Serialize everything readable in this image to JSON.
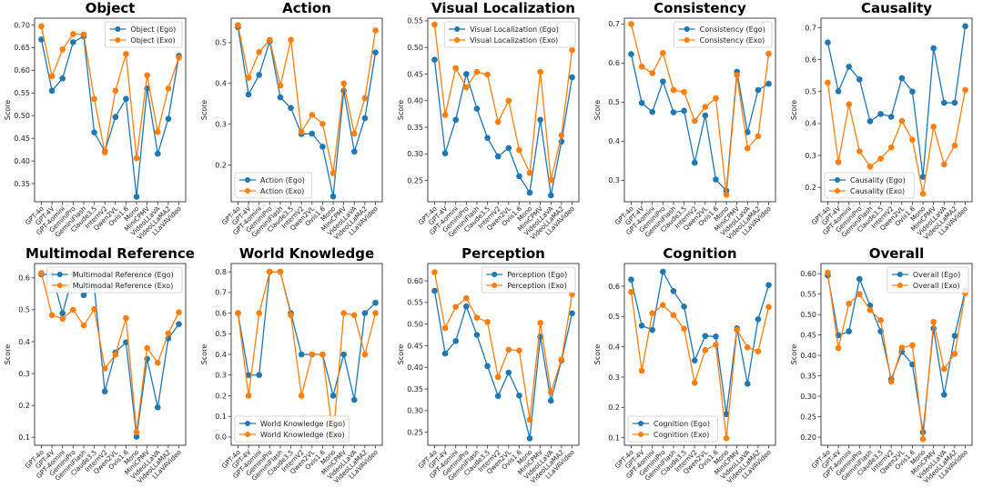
{
  "chart_data": [
    {
      "type": "line",
      "title": "Object",
      "xlabel": "",
      "ylabel": "Score",
      "ylim": [
        0.31,
        0.715
      ],
      "yticks": [
        0.35,
        0.4,
        0.45,
        0.5,
        0.55,
        0.6,
        0.65,
        0.7
      ],
      "ytick_labels": [
        "0.35",
        "0.40",
        "0.45",
        "0.50",
        "0.55",
        "0.60",
        "0.65",
        "0.70"
      ],
      "legend": "top-right",
      "grid": false,
      "categories": [
        "GPT-4o",
        "GPT-4V",
        "GPT-4omini",
        "GeminiPro",
        "GeminiFlash",
        "Claude3.5",
        "InternV2",
        "Qwen2VL",
        "Ovis1.6",
        "Mono",
        "MiniCPMV",
        "VideoLLaVA",
        "VideoLLaMA2",
        "LLaVAVideo"
      ],
      "series": [
        {
          "name": "Object (Ego)",
          "color": "#1f77b4",
          "values": [
            0.668,
            0.555,
            0.582,
            0.662,
            0.675,
            0.463,
            0.421,
            0.497,
            0.537,
            0.321,
            0.56,
            0.416,
            0.493,
            0.632
          ]
        },
        {
          "name": "Object (Exo)",
          "color": "#ff7f0e",
          "values": [
            0.697,
            0.587,
            0.646,
            0.68,
            0.679,
            0.537,
            0.419,
            0.555,
            0.636,
            0.406,
            0.589,
            0.464,
            0.56,
            0.628
          ]
        }
      ]
    },
    {
      "type": "line",
      "title": "Action",
      "xlabel": "",
      "ylabel": "Score",
      "ylim": [
        0.11,
        0.56
      ],
      "yticks": [
        0.2,
        0.3,
        0.4,
        0.5
      ],
      "ytick_labels": [
        "0.2",
        "0.3",
        "0.4",
        "0.5"
      ],
      "legend": "bottom-left",
      "grid": false,
      "categories": [
        "GPT-4o",
        "GPT-4V",
        "GPT-4omini",
        "GeminiPro",
        "GeminiFlash",
        "Claude3.5",
        "InternV2",
        "Qwen2VL",
        "Ovis1.6",
        "Mono",
        "MiniCPMV",
        "VideoLLaVA",
        "VideoLLaMA2",
        "LLaVAVideo"
      ],
      "series": [
        {
          "name": "Action (Ego)",
          "color": "#1f77b4",
          "values": [
            0.538,
            0.373,
            0.421,
            0.503,
            0.366,
            0.34,
            0.276,
            0.277,
            0.245,
            0.123,
            0.382,
            0.233,
            0.315,
            0.476
          ]
        },
        {
          "name": "Action (Exo)",
          "color": "#ff7f0e",
          "values": [
            0.543,
            0.414,
            0.477,
            0.507,
            0.395,
            0.507,
            0.281,
            0.323,
            0.301,
            0.18,
            0.4,
            0.277,
            0.364,
            0.53
          ]
        }
      ]
    },
    {
      "type": "line",
      "title": "Visual Localization",
      "xlabel": "",
      "ylabel": "Score",
      "ylim": [
        0.21,
        0.555
      ],
      "yticks": [
        0.25,
        0.3,
        0.35,
        0.4,
        0.45,
        0.5,
        0.55
      ],
      "ytick_labels": [
        "0.25",
        "0.30",
        "0.35",
        "0.40",
        "0.45",
        "0.50",
        "0.55"
      ],
      "legend": "top-right",
      "grid": false,
      "categories": [
        "GPT-4o",
        "GPT-4V",
        "GPT-4omini",
        "GeminiPro",
        "GeminiFlash",
        "Claude3.5",
        "InternV2",
        "Qwen2VL",
        "Ovis1.6",
        "Mono",
        "MiniCPMV",
        "VideoLLaVA",
        "VideoLLaMA2",
        "LLaVAVideo"
      ],
      "series": [
        {
          "name": "Visual Localization (Ego)",
          "color": "#1f77b4",
          "values": [
            0.477,
            0.301,
            0.364,
            0.45,
            0.385,
            0.33,
            0.295,
            0.311,
            0.258,
            0.227,
            0.364,
            0.222,
            0.323,
            0.444
          ]
        },
        {
          "name": "Visual Localization (Exo)",
          "color": "#ff7f0e",
          "values": [
            0.543,
            0.373,
            0.461,
            0.425,
            0.454,
            0.449,
            0.36,
            0.4,
            0.307,
            0.264,
            0.454,
            0.251,
            0.335,
            0.495
          ]
        }
      ]
    },
    {
      "type": "line",
      "title": "Consistency",
      "xlabel": "",
      "ylabel": "Score",
      "ylim": [
        0.245,
        0.715
      ],
      "yticks": [
        0.3,
        0.4,
        0.5,
        0.6,
        0.7
      ],
      "ytick_labels": [
        "0.3",
        "0.4",
        "0.5",
        "0.6",
        "0.7"
      ],
      "legend": "top-right",
      "grid": false,
      "categories": [
        "GPT-4o",
        "GPT-4V",
        "GPT-4omini",
        "GeminiPro",
        "GeminiFlash",
        "Claude3.5",
        "InternV2",
        "Qwen2VL",
        "Ovis1.6",
        "Mono",
        "MiniCPMV",
        "VideoLLaVA",
        "VideoLLaMA2",
        "LLaVAVideo"
      ],
      "series": [
        {
          "name": "Consistency (Ego)",
          "color": "#1f77b4",
          "values": [
            0.623,
            0.498,
            0.475,
            0.553,
            0.474,
            0.478,
            0.345,
            0.466,
            0.302,
            0.273,
            0.578,
            0.423,
            0.531,
            0.547
          ]
        },
        {
          "name": "Consistency (Exo)",
          "color": "#ff7f0e",
          "values": [
            0.7,
            0.591,
            0.574,
            0.626,
            0.531,
            0.526,
            0.452,
            0.488,
            0.51,
            0.263,
            0.569,
            0.382,
            0.413,
            0.624
          ]
        }
      ]
    },
    {
      "type": "line",
      "title": "Causality",
      "xlabel": "",
      "ylabel": "Score",
      "ylim": [
        0.155,
        0.73
      ],
      "yticks": [
        0.2,
        0.3,
        0.4,
        0.5,
        0.6,
        0.7
      ],
      "ytick_labels": [
        "0.2",
        "0.3",
        "0.4",
        "0.5",
        "0.6",
        "0.7"
      ],
      "legend": "bottom-left",
      "grid": false,
      "categories": [
        "GPT-4o",
        "GPT-4V",
        "GPT-4omini",
        "GeminiPro",
        "GeminiFlash",
        "Claude3.5",
        "InternV2",
        "Qwen2VL",
        "Ovis1.6",
        "Mono",
        "MiniCPMV",
        "VideoLLaVA",
        "VideoLLaMA2",
        "LLaVAVideo"
      ],
      "series": [
        {
          "name": "Causality (Ego)",
          "color": "#1f77b4",
          "values": [
            0.654,
            0.501,
            0.578,
            0.538,
            0.407,
            0.43,
            0.421,
            0.542,
            0.5,
            0.233,
            0.636,
            0.465,
            0.465,
            0.705
          ]
        },
        {
          "name": "Causality (Exo)",
          "color": "#ff7f0e",
          "values": [
            0.528,
            0.279,
            0.46,
            0.313,
            0.265,
            0.29,
            0.325,
            0.408,
            0.349,
            0.18,
            0.39,
            0.272,
            0.331,
            0.505
          ]
        }
      ]
    },
    {
      "type": "line",
      "title": "Multimodal Reference",
      "xlabel": "",
      "ylabel": "Score",
      "ylim": [
        0.075,
        0.645
      ],
      "yticks": [
        0.1,
        0.2,
        0.3,
        0.4,
        0.5,
        0.6
      ],
      "ytick_labels": [
        "0.1",
        "0.2",
        "0.3",
        "0.4",
        "0.5",
        "0.6"
      ],
      "legend": "top-right",
      "grid": false,
      "categories": [
        "GPT-4o",
        "GPT-4V",
        "GPT-4omini",
        "GeminiPro",
        "GeminiFlash",
        "Claude3.5",
        "InternV2",
        "Qwen2VL",
        "Ovis1.6",
        "Mono",
        "MiniCPMV",
        "VideoLLaVA",
        "VideoLLaMA2",
        "LLaVAVideo"
      ],
      "series": [
        {
          "name": "Multimodal Reference (Ego)",
          "color": "#1f77b4",
          "values": [
            0.611,
            0.611,
            0.489,
            0.611,
            0.546,
            0.571,
            0.244,
            0.366,
            0.398,
            0.102,
            0.346,
            0.194,
            0.41,
            0.455
          ]
        },
        {
          "name": "Multimodal Reference (Exo)",
          "color": "#ff7f0e",
          "values": [
            0.615,
            0.483,
            0.472,
            0.5,
            0.451,
            0.502,
            0.316,
            0.359,
            0.474,
            0.116,
            0.38,
            0.334,
            0.426,
            0.492
          ]
        }
      ]
    },
    {
      "type": "line",
      "title": "World Knowledge",
      "xlabel": "",
      "ylabel": "Score",
      "ylim": [
        -0.04,
        0.84
      ],
      "yticks": [
        0.0,
        0.1,
        0.2,
        0.3,
        0.4,
        0.5,
        0.6,
        0.7,
        0.8
      ],
      "ytick_labels": [
        "0.0",
        "0.1",
        "0.2",
        "0.3",
        "0.4",
        "0.5",
        "0.6",
        "0.7",
        "0.8"
      ],
      "legend": "bottom-left",
      "grid": false,
      "categories": [
        "GPT-4o",
        "GPT-4V",
        "GPT-4omini",
        "GeminiPro",
        "GeminiFlash",
        "Claude3.5",
        "InternV2",
        "Qwen2VL",
        "Ovis1.6",
        "Mono",
        "MiniCPMV",
        "VideoLLaVA",
        "VideoLLaMA2",
        "LLaVAVideo"
      ],
      "series": [
        {
          "name": "World Knowledge (Ego)",
          "color": "#1f77b4",
          "values": [
            0.6,
            0.3,
            0.3,
            0.8,
            0.8,
            0.6,
            0.4,
            0.4,
            0.4,
            0.2,
            0.4,
            0.18,
            0.6,
            0.65
          ]
        },
        {
          "name": "World Knowledge (Exo)",
          "color": "#ff7f0e",
          "values": [
            0.6,
            0.2,
            0.6,
            0.8,
            0.8,
            0.59,
            0.2,
            0.4,
            0.4,
            0.0,
            0.6,
            0.59,
            0.4,
            0.6
          ]
        }
      ]
    },
    {
      "type": "line",
      "title": "Perception",
      "xlabel": "",
      "ylabel": "Score",
      "ylim": [
        0.22,
        0.64
      ],
      "yticks": [
        0.25,
        0.3,
        0.35,
        0.4,
        0.45,
        0.5,
        0.55,
        0.6
      ],
      "ytick_labels": [
        "0.25",
        "0.30",
        "0.35",
        "0.40",
        "0.45",
        "0.50",
        "0.55",
        "0.60"
      ],
      "legend": "top-right",
      "grid": false,
      "categories": [
        "GPT-4o",
        "GPT-4V",
        "GPT-4omini",
        "GeminiPro",
        "GeminiFlash",
        "Claude3.5",
        "InternV2",
        "Qwen2VL",
        "Ovis1.6",
        "Mono",
        "MiniCPMV",
        "VideoLLaVA",
        "VideoLLaMA2",
        "LLaVAVideo"
      ],
      "series": [
        {
          "name": "Perception (Ego)",
          "color": "#1f77b4",
          "values": [
            0.577,
            0.432,
            0.461,
            0.541,
            0.475,
            0.403,
            0.334,
            0.388,
            0.335,
            0.236,
            0.471,
            0.323,
            0.416,
            0.525
          ]
        },
        {
          "name": "Perception (Exo)",
          "color": "#ff7f0e",
          "values": [
            0.62,
            0.491,
            0.54,
            0.56,
            0.515,
            0.505,
            0.378,
            0.441,
            0.439,
            0.279,
            0.503,
            0.343,
            0.418,
            0.569
          ]
        }
      ]
    },
    {
      "type": "line",
      "title": "Cognition",
      "xlabel": "",
      "ylabel": "Score",
      "ylim": [
        0.075,
        0.675
      ],
      "yticks": [
        0.1,
        0.2,
        0.3,
        0.4,
        0.5,
        0.6
      ],
      "ytick_labels": [
        "0.1",
        "0.2",
        "0.3",
        "0.4",
        "0.5",
        "0.6"
      ],
      "legend": "bottom-left",
      "grid": false,
      "categories": [
        "GPT-4o",
        "GPT-4V",
        "GPT-4omini",
        "GeminiPro",
        "GeminiFlash",
        "Claude3.5",
        "InternV2",
        "Qwen2VL",
        "Ovis1.6",
        "Mono",
        "MiniCPMV",
        "VideoLLaVA",
        "VideoLLaMA2",
        "LLaVAVideo"
      ],
      "series": [
        {
          "name": "Cognition (Ego)",
          "color": "#1f77b4",
          "values": [
            0.622,
            0.47,
            0.456,
            0.648,
            0.584,
            0.533,
            0.355,
            0.436,
            0.434,
            0.178,
            0.461,
            0.278,
            0.491,
            0.604
          ]
        },
        {
          "name": "Cognition (Exo)",
          "color": "#ff7f0e",
          "values": [
            0.581,
            0.321,
            0.511,
            0.538,
            0.505,
            0.46,
            0.281,
            0.389,
            0.407,
            0.098,
            0.456,
            0.398,
            0.385,
            0.532
          ]
        }
      ]
    },
    {
      "type": "line",
      "title": "Overall",
      "xlabel": "",
      "ylabel": "Score",
      "ylim": [
        0.18,
        0.625
      ],
      "yticks": [
        0.2,
        0.25,
        0.3,
        0.35,
        0.4,
        0.45,
        0.5,
        0.55,
        0.6
      ],
      "ytick_labels": [
        "0.20",
        "0.25",
        "0.30",
        "0.35",
        "0.40",
        "0.45",
        "0.50",
        "0.55",
        "0.60"
      ],
      "legend": "top-right",
      "grid": false,
      "categories": [
        "GPT-4o",
        "GPT-4V",
        "GPT-4omini",
        "GeminiPro",
        "GeminiFlash",
        "Claude3.5",
        "InternV2",
        "Qwen2VL",
        "Ovis1.6",
        "Mono",
        "MiniCPMV",
        "VideoLLaVA",
        "VideoLLaMA2",
        "LLaVAVideo"
      ],
      "series": [
        {
          "name": "Overall (Ego)",
          "color": "#1f77b4",
          "values": [
            0.596,
            0.449,
            0.459,
            0.587,
            0.522,
            0.459,
            0.342,
            0.409,
            0.378,
            0.212,
            0.466,
            0.304,
            0.448,
            0.559
          ]
        },
        {
          "name": "Overall (Exo)",
          "color": "#ff7f0e",
          "values": [
            0.603,
            0.418,
            0.527,
            0.55,
            0.511,
            0.486,
            0.336,
            0.419,
            0.425,
            0.195,
            0.482,
            0.367,
            0.404,
            0.553
          ]
        }
      ]
    }
  ]
}
